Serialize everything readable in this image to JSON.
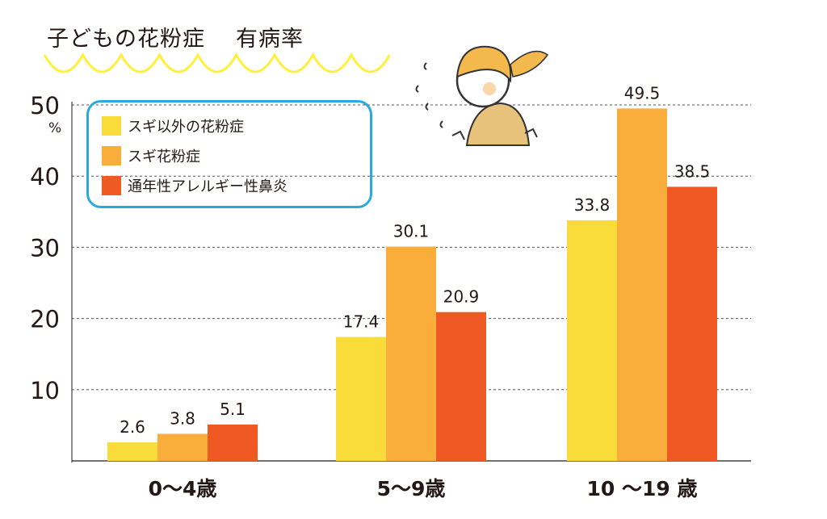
{
  "chart_data": {
    "type": "bar",
    "title": "子どもの花粉症　有病率",
    "title_parts": [
      "子どもの花粉症",
      "有病率"
    ],
    "ylabel": "%",
    "ylim": [
      0,
      50
    ],
    "yticks": [
      10,
      20,
      30,
      40,
      50
    ],
    "grid": true,
    "legend_position": "top-left",
    "categories": [
      "0〜4歳",
      "5〜9歳",
      "10 〜19 歳"
    ],
    "series": [
      {
        "name": "スギ以外の花粉症",
        "color": "#f9dc3a",
        "values": [
          2.6,
          17.4,
          33.8
        ]
      },
      {
        "name": "スギ花粉症",
        "color": "#f9ae3c",
        "values": [
          3.8,
          30.1,
          49.5
        ]
      },
      {
        "name": "通年性アレルギー性鼻炎",
        "color": "#ef5a24",
        "values": [
          5.1,
          20.9,
          38.5
        ]
      }
    ],
    "data_labels": [
      "2.6",
      "3.8",
      "5.1",
      "17.4",
      "30.1",
      "20.9",
      "33.8",
      "49.5",
      "38.5"
    ]
  }
}
